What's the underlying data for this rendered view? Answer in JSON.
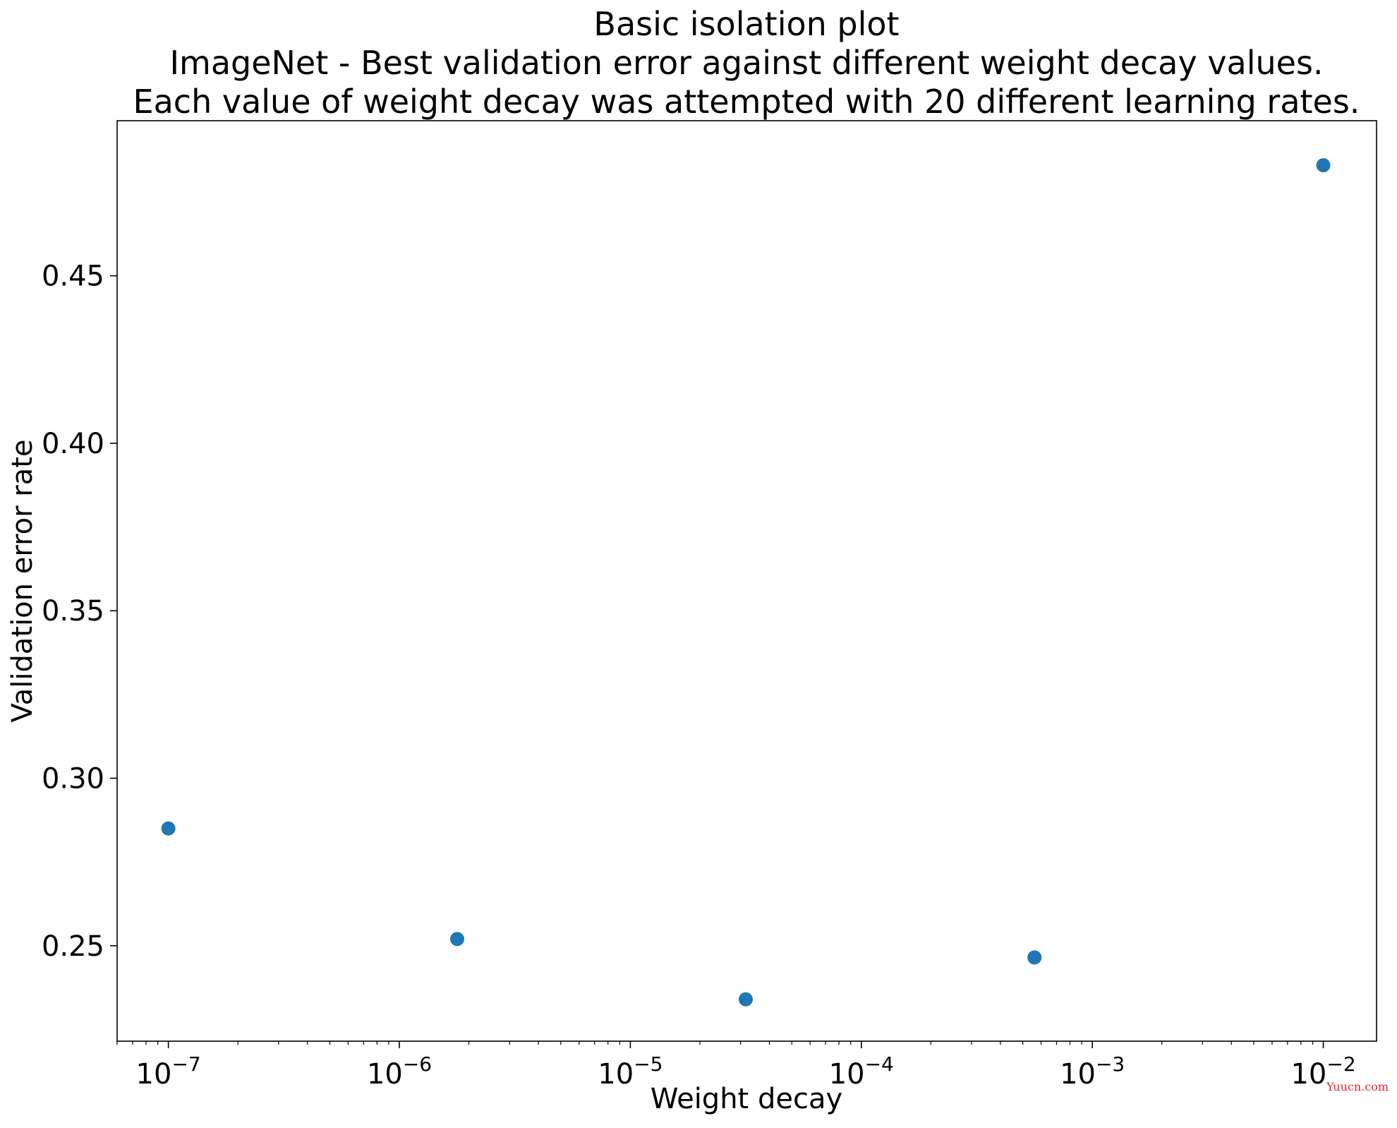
{
  "title_lines": [
    "Basic isolation plot",
    "ImageNet - Best validation error against different weight decay values.",
    "Each value of weight decay was attempted with 20 different learning rates."
  ],
  "watermark": "Yuucn.com",
  "chart_data": {
    "type": "scatter",
    "xlabel": "Weight decay",
    "ylabel": "Validation error rate",
    "xscale": "log",
    "xlim": [
      6e-08,
      0.017
    ],
    "ylim": [
      0.2215,
      0.4963
    ],
    "grid": false,
    "marker_color": "#1f77b4",
    "points": [
      {
        "x": 1e-07,
        "y": 0.285
      },
      {
        "x": 1.78e-06,
        "y": 0.252
      },
      {
        "x": 3.16e-05,
        "y": 0.234
      },
      {
        "x": 0.000562,
        "y": 0.2465
      },
      {
        "x": 0.01,
        "y": 0.483
      }
    ],
    "x_ticks": [
      {
        "value": 1e-07,
        "base": "10",
        "exp": "−7"
      },
      {
        "value": 1e-06,
        "base": "10",
        "exp": "−6"
      },
      {
        "value": 1e-05,
        "base": "10",
        "exp": "−5"
      },
      {
        "value": 0.0001,
        "base": "10",
        "exp": "−4"
      },
      {
        "value": 0.001,
        "base": "10",
        "exp": "−3"
      },
      {
        "value": 0.01,
        "base": "10",
        "exp": "−2"
      }
    ],
    "y_ticks": [
      {
        "value": 0.25,
        "label": "0.25"
      },
      {
        "value": 0.3,
        "label": "0.30"
      },
      {
        "value": 0.35,
        "label": "0.35"
      },
      {
        "value": 0.4,
        "label": "0.40"
      },
      {
        "value": 0.45,
        "label": "0.45"
      }
    ]
  }
}
